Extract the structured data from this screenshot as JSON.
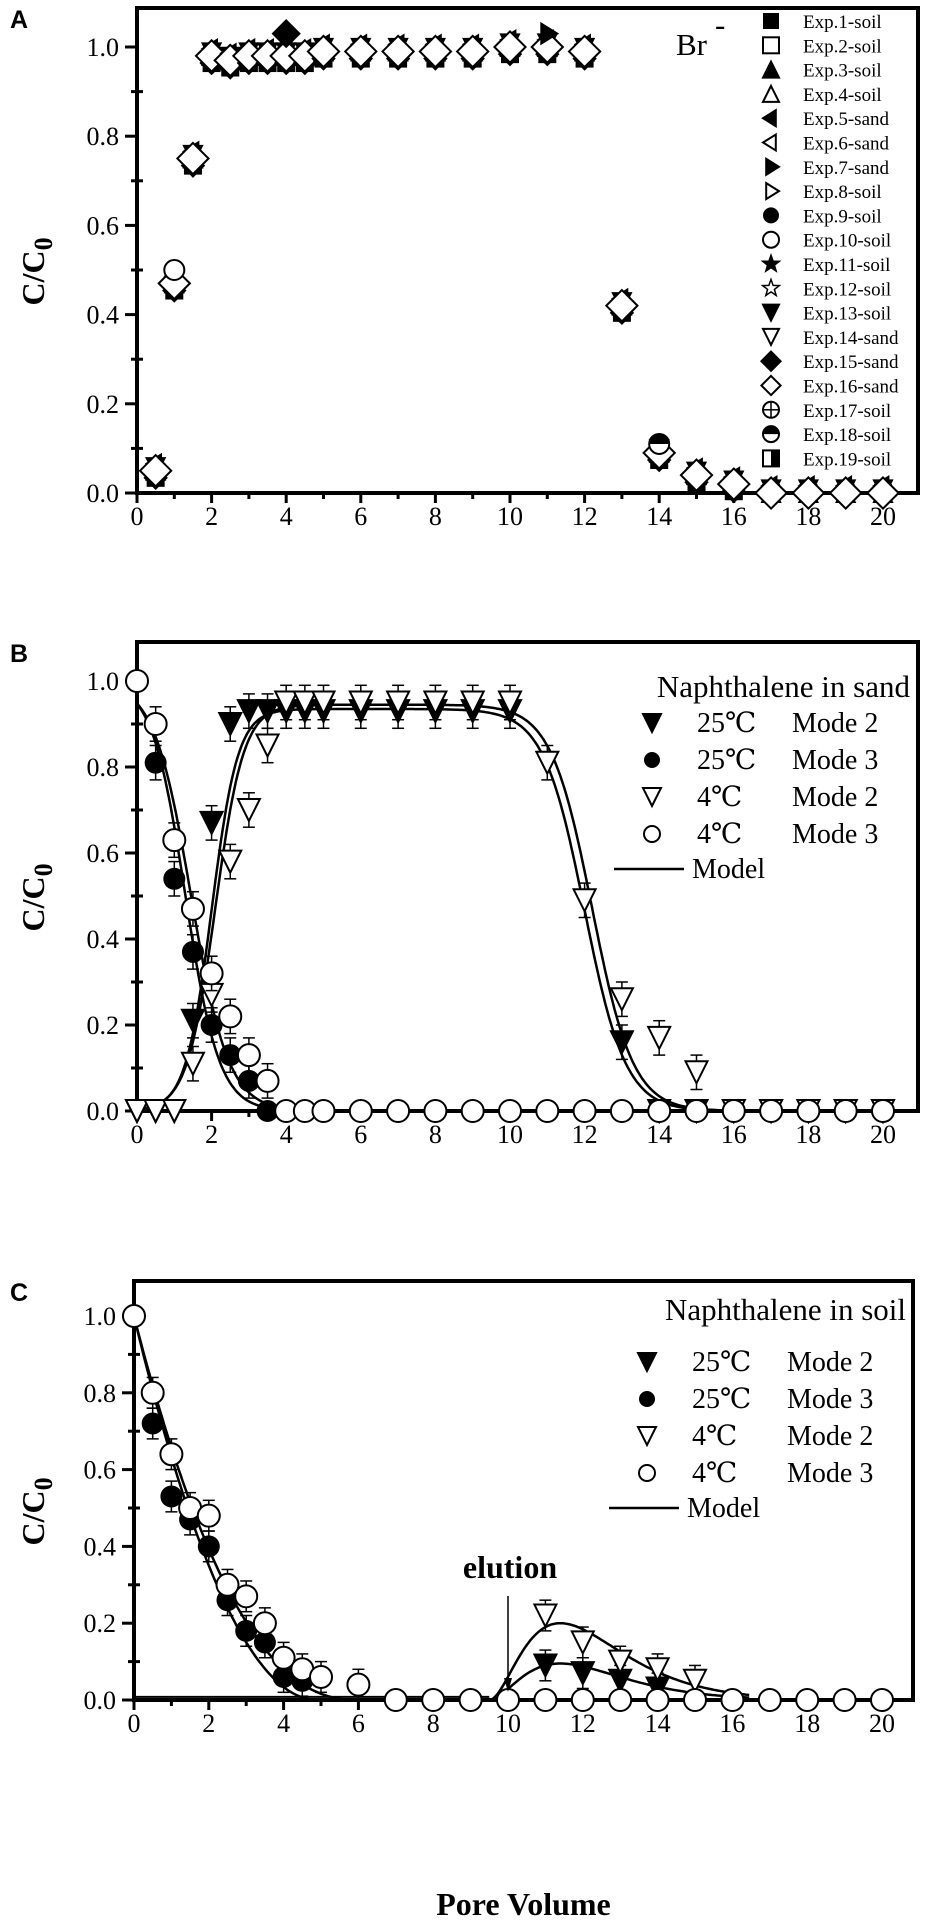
{
  "figure": {
    "panels": [
      "A",
      "B",
      "C"
    ],
    "ylabel": "C/C0",
    "xlabel": "Pore Volume"
  },
  "chart_data": [
    {
      "panel": "A",
      "type": "scatter",
      "title": "Br-",
      "xlabel": "",
      "ylabel": "C/C0",
      "xlim": [
        0,
        21
      ],
      "ylim": [
        0,
        1.08
      ],
      "xticks": [
        0,
        2,
        4,
        6,
        8,
        10,
        12,
        14,
        16,
        18,
        20
      ],
      "yticks": [
        0.0,
        0.2,
        0.4,
        0.6,
        0.8,
        1.0
      ],
      "grid": false,
      "legend_position": "right-inside",
      "legend": [
        "Exp.1-soil",
        "Exp.2-soil",
        "Exp.3-soil",
        "Exp.4-soil",
        "Exp.5-sand",
        "Exp.6-sand",
        "Exp.7-sand",
        "Exp.8-soil",
        "Exp.9-soil",
        "Exp.10-soil",
        "Exp.11-soil",
        "Exp.12-soil",
        "Exp.13-soil",
        "Exp.14-sand",
        "Exp.15-sand",
        "Exp.16-sand",
        "Exp.17-soil",
        "Exp.18-soil",
        "Exp.19-soil"
      ],
      "legend_markers": [
        "filled-square",
        "open-square",
        "filled-triangle-up",
        "open-triangle-up",
        "filled-triangle-left",
        "open-triangle-left",
        "filled-triangle-right",
        "open-triangle-right",
        "filled-circle",
        "open-circle",
        "filled-star",
        "open-star",
        "filled-triangle-down",
        "open-triangle-down",
        "filled-diamond",
        "open-diamond",
        "crossed-circle",
        "half-filled-circle",
        "half-filled-square"
      ],
      "representative_series": {
        "name": "Br- breakthrough (all experiments overlap)",
        "x": [
          0.5,
          1,
          1.5,
          2,
          2.5,
          3,
          3.5,
          4,
          4.5,
          5,
          6,
          7,
          8,
          9,
          10,
          11,
          12,
          13,
          14,
          15,
          16,
          17,
          18,
          19,
          20
        ],
        "y": [
          0.05,
          0.47,
          0.75,
          0.98,
          0.97,
          0.98,
          0.98,
          0.98,
          0.98,
          0.99,
          0.99,
          0.99,
          0.99,
          0.99,
          1.0,
          1.0,
          0.99,
          0.42,
          0.09,
          0.04,
          0.02,
          0.0,
          0.0,
          0.0,
          0.0
        ]
      },
      "annotations": [
        "Exp.10 open circle at x=1, y=0.50",
        "Exp.15 filled diamond at x=4, y=1.03",
        "Exp.7 filled triangle at x=11, y=1.03",
        "Exp.18 half-filled circle at x=14, y=0.11"
      ]
    },
    {
      "panel": "B",
      "type": "scatter",
      "title": "Naphthalene in sand",
      "xlabel": "",
      "ylabel": "C/C0",
      "xlim": [
        0,
        21
      ],
      "ylim": [
        0,
        1.08
      ],
      "xticks": [
        0,
        2,
        4,
        6,
        8,
        10,
        12,
        14,
        16,
        18,
        20
      ],
      "yticks": [
        0.0,
        0.2,
        0.4,
        0.6,
        0.8,
        1.0
      ],
      "grid": false,
      "legend_position": "upper-right",
      "series": [
        {
          "name": "25℃ Mode 2",
          "marker": "filled-triangle-down",
          "x": [
            0,
            0.5,
            1,
            1.5,
            2,
            2.5,
            3,
            3.5,
            4,
            4.5,
            5,
            6,
            7,
            8,
            9,
            10,
            13,
            14,
            15,
            16,
            17,
            18,
            19,
            20
          ],
          "y": [
            0,
            0,
            0,
            0.21,
            0.67,
            0.9,
            0.93,
            0.93,
            0.93,
            0.93,
            0.93,
            0.93,
            0.93,
            0.93,
            0.93,
            0.93,
            0.16,
            0.0,
            0,
            0,
            0,
            0,
            0,
            0
          ]
        },
        {
          "name": "25℃ Mode 3",
          "marker": "filled-circle",
          "x": [
            0.5,
            1,
            1.5,
            2,
            2.5,
            3,
            3.5
          ],
          "y": [
            0.81,
            0.54,
            0.37,
            0.2,
            0.13,
            0.07,
            0.0
          ]
        },
        {
          "name": "4℃ Mode 2",
          "marker": "open-triangle-down",
          "x": [
            0,
            0.5,
            1,
            1.5,
            2,
            2.5,
            3,
            3.5,
            4,
            4.5,
            5,
            6,
            7,
            8,
            9,
            10,
            11,
            12,
            13,
            14,
            15,
            16,
            17,
            18,
            19,
            20
          ],
          "y": [
            0,
            0,
            0,
            0.11,
            0.27,
            0.58,
            0.7,
            0.85,
            0.95,
            0.95,
            0.95,
            0.95,
            0.95,
            0.95,
            0.95,
            0.95,
            0.81,
            0.49,
            0.26,
            0.17,
            0.09,
            0.0,
            0,
            0,
            0,
            0
          ]
        },
        {
          "name": "4℃ Mode 3",
          "marker": "open-circle",
          "x": [
            0,
            0.5,
            1,
            1.5,
            2,
            2.5,
            3,
            3.5,
            4,
            4.5,
            5,
            6,
            7,
            8,
            9,
            10,
            11,
            12,
            13,
            14,
            15,
            16,
            17,
            18,
            19,
            20
          ],
          "y": [
            1.0,
            0.9,
            0.63,
            0.47,
            0.32,
            0.22,
            0.13,
            0.07,
            0,
            0,
            0,
            0,
            0,
            0,
            0,
            0,
            0,
            0,
            0,
            0,
            0,
            0,
            0,
            0,
            0,
            0
          ]
        },
        {
          "name": "Model",
          "marker": "line"
        }
      ]
    },
    {
      "panel": "C",
      "type": "scatter",
      "title": "Naphthalene in soil",
      "xlabel": "Pore Volume",
      "ylabel": "C/C0",
      "xlim": [
        0,
        21
      ],
      "ylim": [
        0,
        1.08
      ],
      "xticks": [
        0,
        2,
        4,
        6,
        8,
        10,
        12,
        14,
        16,
        18,
        20
      ],
      "yticks": [
        0.0,
        0.2,
        0.4,
        0.6,
        0.8,
        1.0
      ],
      "grid": false,
      "legend_position": "upper-right",
      "annotations": [
        {
          "text": "elution",
          "x": 10,
          "arrow_to_y": 0.0
        }
      ],
      "series": [
        {
          "name": "25℃ Mode 2",
          "marker": "filled-triangle-down",
          "x": [
            11,
            12,
            13,
            14
          ],
          "y": [
            0.09,
            0.07,
            0.05,
            0.03
          ]
        },
        {
          "name": "25℃ Mode 3",
          "marker": "filled-circle",
          "x": [
            0.5,
            1,
            1.5,
            2,
            2.5,
            3,
            3.5,
            4,
            4.5
          ],
          "y": [
            0.72,
            0.53,
            0.47,
            0.4,
            0.26,
            0.18,
            0.15,
            0.06,
            0.05
          ]
        },
        {
          "name": "4℃ Mode 2",
          "marker": "open-triangle-down",
          "x": [
            11,
            12,
            13,
            14,
            15
          ],
          "y": [
            0.22,
            0.15,
            0.1,
            0.08,
            0.05
          ]
        },
        {
          "name": "4℃ Mode 3",
          "marker": "open-circle",
          "x": [
            0,
            0.5,
            1,
            1.5,
            2,
            2.5,
            3,
            3.5,
            4,
            4.5,
            5,
            6,
            7,
            8,
            9,
            10,
            11,
            12,
            13,
            14,
            15,
            16,
            17,
            18,
            19,
            20
          ],
          "y": [
            1.0,
            0.8,
            0.64,
            0.5,
            0.48,
            0.3,
            0.27,
            0.2,
            0.11,
            0.08,
            0.06,
            0.04,
            0,
            0,
            0,
            0,
            0,
            0,
            0,
            0,
            0,
            0,
            0,
            0,
            0,
            0
          ]
        },
        {
          "name": "Model",
          "marker": "line"
        }
      ]
    }
  ],
  "text": {
    "A": {
      "label": "A",
      "title": "Br",
      "title_sup": "-"
    },
    "B": {
      "label": "B",
      "title": "Naphthalene in sand"
    },
    "C": {
      "label": "C",
      "title": "Naphthalene in soil",
      "annotation": "elution"
    },
    "ylabel_main": "C/C",
    "ylabel_sub": "0",
    "xlabel": "Pore Volume",
    "legend2": [
      {
        "temp": "25℃",
        "mode": "Mode 2"
      },
      {
        "temp": "25℃",
        "mode": "Mode 3"
      },
      {
        "temp": "4℃",
        "mode": "Mode 2"
      },
      {
        "temp": "4℃",
        "mode": "Mode 3"
      }
    ],
    "model": "Model"
  }
}
